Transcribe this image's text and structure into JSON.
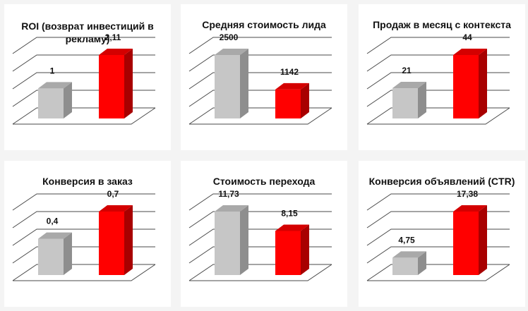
{
  "colors": {
    "grey": {
      "front": "#c6c6c6",
      "side": "#8e8e8e",
      "top": "#a9a9a9"
    },
    "red": {
      "front": "#ff0000",
      "side": "#a80000",
      "top": "#d40000"
    },
    "grid": "#4a4a4a"
  },
  "chart_data": [
    {
      "type": "bar",
      "title": "ROI (возврат инвестиций  в рекламу)",
      "series": [
        {
          "values": [
            1,
            2.11
          ]
        }
      ],
      "labels": [
        "1",
        "2,11"
      ],
      "colors": [
        "grey",
        "red"
      ]
    },
    {
      "type": "bar",
      "title": "Средняя стоимость лида",
      "series": [
        {
          "values": [
            2500,
            1142
          ]
        }
      ],
      "labels": [
        "2500",
        "1142"
      ],
      "colors": [
        "grey",
        "red"
      ]
    },
    {
      "type": "bar",
      "title": "Продаж в месяц с контекста",
      "series": [
        {
          "values": [
            21,
            44
          ]
        }
      ],
      "labels": [
        "21",
        "44"
      ],
      "colors": [
        "grey",
        "red"
      ]
    },
    {
      "type": "bar",
      "title": "Конверсия в заказ",
      "series": [
        {
          "values": [
            0.4,
            0.7
          ]
        }
      ],
      "labels": [
        "0,4",
        "0,7"
      ],
      "colors": [
        "grey",
        "red"
      ]
    },
    {
      "type": "bar",
      "title": "Стоимость перехода",
      "series": [
        {
          "values": [
            11.73,
            8.15
          ]
        }
      ],
      "labels": [
        "11,73",
        "8,15"
      ],
      "colors": [
        "grey",
        "red"
      ]
    },
    {
      "type": "bar",
      "title": "Конверсия объявлений (CTR)",
      "series": [
        {
          "values": [
            4.75,
            17.38
          ]
        }
      ],
      "labels": [
        "4,75",
        "17,38"
      ],
      "colors": [
        "grey",
        "red"
      ]
    }
  ]
}
